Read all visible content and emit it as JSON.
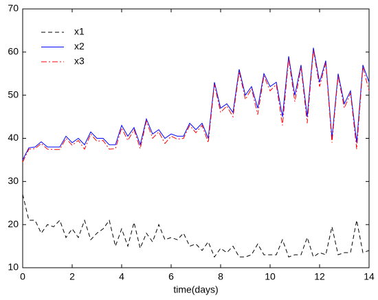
{
  "chart_data": {
    "type": "line",
    "x_label": "time(days)",
    "x": [
      0,
      0.25,
      0.5,
      0.75,
      1,
      1.25,
      1.5,
      1.75,
      2,
      2.25,
      2.5,
      2.75,
      3,
      3.25,
      3.5,
      3.75,
      4,
      4.25,
      4.5,
      4.75,
      5,
      5.25,
      5.5,
      5.75,
      6,
      6.25,
      6.5,
      6.75,
      7,
      7.25,
      7.5,
      7.75,
      8,
      8.25,
      8.5,
      8.75,
      9,
      9.25,
      9.5,
      9.75,
      10,
      10.25,
      10.5,
      10.75,
      11,
      11.25,
      11.5,
      11.75,
      12,
      12.25,
      12.5,
      12.75,
      13,
      13.25,
      13.5,
      13.75,
      14
    ],
    "series": [
      {
        "name": "x1",
        "color": "#000000",
        "dash": "6,4",
        "values": [
          27,
          21,
          21,
          18,
          20,
          19.5,
          21,
          17,
          19,
          17,
          21,
          16.5,
          18,
          19,
          21,
          15,
          19,
          15,
          20.5,
          14.5,
          18,
          16,
          20,
          16.5,
          17,
          16.5,
          18,
          15,
          15.5,
          14,
          16,
          12.5,
          14.5,
          13.5,
          15,
          12.5,
          12.5,
          13,
          15.5,
          13,
          13,
          13,
          16.5,
          12.5,
          13,
          13,
          17,
          12.5,
          13.5,
          13,
          19.5,
          13,
          13.5,
          13.5,
          21,
          13.5,
          14
        ]
      },
      {
        "name": "x2",
        "color": "#0000ff",
        "dash": "none",
        "values": [
          35,
          37.8,
          38,
          39.2,
          38,
          38,
          38,
          40.5,
          39,
          40,
          38.5,
          41.5,
          40,
          40,
          38.5,
          38.5,
          43,
          40.5,
          42.5,
          38.5,
          44.5,
          41,
          42,
          40,
          41,
          40.5,
          40.5,
          43.5,
          42,
          43.5,
          40,
          53,
          47,
          48,
          46,
          56,
          50,
          52,
          47,
          55,
          52,
          53,
          45,
          59,
          50,
          57,
          45,
          61,
          53,
          58,
          40,
          55,
          48,
          51,
          39,
          57,
          53
        ]
      },
      {
        "name": "x3",
        "color": "#ff0000",
        "dash": "8,3,2,3",
        "values": [
          34.5,
          37.5,
          37.6,
          38.8,
          37.5,
          37.4,
          37.4,
          40,
          38.4,
          39.5,
          37.5,
          41,
          39.3,
          39.5,
          37.5,
          37.6,
          42.4,
          39.5,
          42,
          37.6,
          44,
          40,
          41.5,
          38.8,
          40.5,
          39.8,
          40,
          43,
          41.3,
          43,
          39,
          52.5,
          46,
          47.5,
          45,
          55.5,
          49,
          51.5,
          45.5,
          54.5,
          51,
          52.5,
          43,
          58.5,
          48.5,
          56.5,
          43.5,
          60.5,
          52,
          57.5,
          39,
          54.5,
          47,
          50.5,
          37.5,
          56.5,
          51
        ]
      }
    ],
    "xlim": [
      0,
      14
    ],
    "xticks": [
      0,
      2,
      4,
      6,
      8,
      10,
      12,
      14
    ],
    "ylim": [
      10,
      70
    ],
    "yticks": [
      10,
      20,
      30,
      40,
      50,
      60,
      70
    ],
    "legend": "upper-left"
  }
}
